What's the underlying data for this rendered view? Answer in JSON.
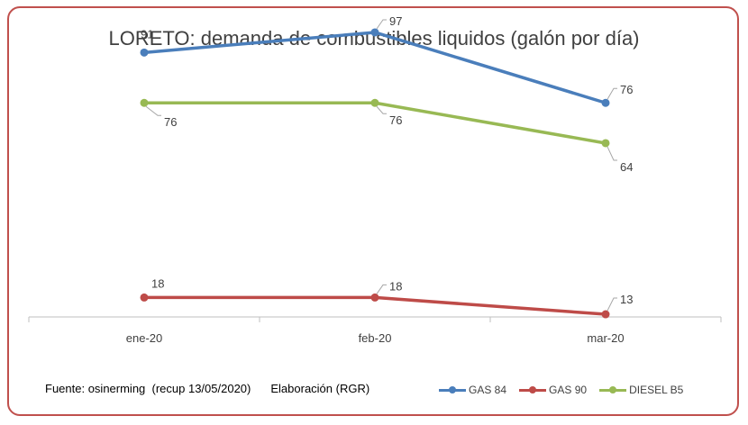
{
  "chart_data": {
    "type": "line",
    "title": "LORETO: demanda de combustibles liquidos (galón por día)",
    "categories": [
      "ene-20",
      "feb-20",
      "mar-20"
    ],
    "series": [
      {
        "name": "GAS 84",
        "values": [
          91,
          97,
          76
        ],
        "color": "#4a7ebb"
      },
      {
        "name": "GAS 90",
        "values": [
          18,
          18,
          13
        ],
        "color": "#be4b48"
      },
      {
        "name": "DIESEL B5",
        "values": [
          76,
          76,
          64
        ],
        "color": "#98b954"
      }
    ],
    "ylim": [
      0,
      120
    ],
    "grid": false,
    "legend_position": "bottom-right"
  },
  "footer": {
    "source": "Fuente: osinerming  (recup 13/05/2020)",
    "author": "Elaboración (RGR)"
  }
}
